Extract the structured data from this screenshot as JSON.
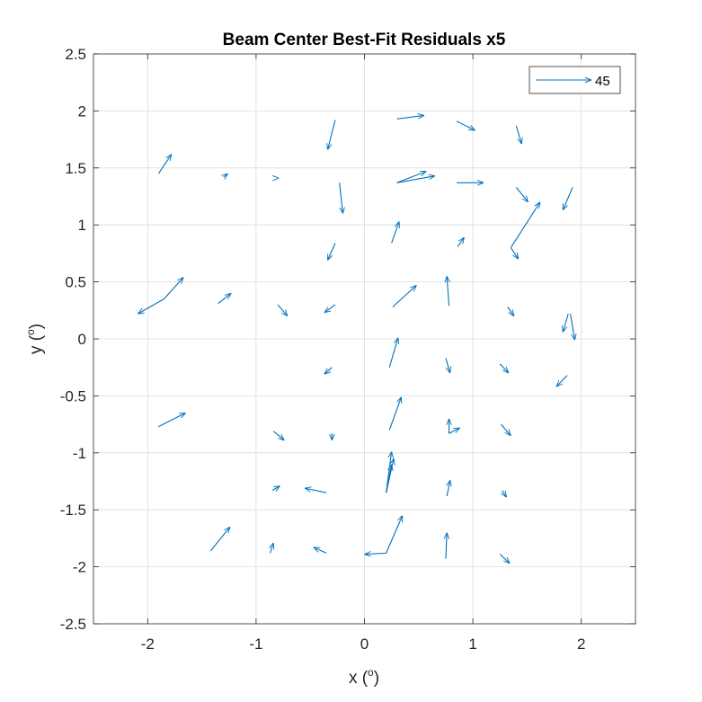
{
  "chart_data": {
    "type": "quiver",
    "title": "Beam Center Best-Fit Residuals x5",
    "xlabel": "x (",
    "xlabel_sup": "o",
    "xlabel_close": ")",
    "ylabel": "y (",
    "ylabel_sup": "o",
    "ylabel_close": ")",
    "xlim": [
      -2.5,
      2.5
    ],
    "ylim": [
      -2.5,
      2.5
    ],
    "xticks": [
      -2,
      -1,
      0,
      1,
      2
    ],
    "xtick_labels": [
      "-2",
      "-1",
      "0",
      "1",
      "2"
    ],
    "yticks": [
      -2.5,
      -2,
      -1.5,
      -1,
      -0.5,
      0,
      0.5,
      1,
      1.5,
      2,
      2.5
    ],
    "ytick_labels": [
      "-2.5",
      "-2",
      "-1.5",
      "-1",
      "-0.5",
      "0",
      "0.5",
      "1",
      "1.5",
      "2",
      "2.5"
    ],
    "grid": true,
    "legend": {
      "label": "45",
      "placement": "top-right",
      "reference_vector": [
        0.5,
        0
      ]
    },
    "arrow_color": "#0072BD",
    "arrows": [
      [
        -1.9,
        1.45,
        0.12,
        0.17
      ],
      [
        -1.3,
        1.42,
        0.04,
        0.03
      ],
      [
        -0.8,
        1.41,
        0.01,
        0.0
      ],
      [
        -0.27,
        1.92,
        -0.07,
        -0.26
      ],
      [
        0.3,
        1.93,
        0.25,
        0.03
      ],
      [
        0.85,
        1.91,
        0.17,
        -0.08
      ],
      [
        1.4,
        1.87,
        0.05,
        -0.16
      ],
      [
        0.3,
        1.37,
        0.27,
        0.1
      ],
      [
        0.3,
        1.37,
        0.35,
        0.06
      ],
      [
        0.85,
        1.37,
        0.25,
        0.0
      ],
      [
        1.4,
        1.33,
        0.11,
        -0.13
      ],
      [
        1.92,
        1.33,
        -0.09,
        -0.2
      ],
      [
        -0.23,
        1.37,
        0.03,
        -0.27
      ],
      [
        -0.27,
        0.84,
        -0.07,
        -0.15
      ],
      [
        0.25,
        0.84,
        0.07,
        0.19
      ],
      [
        0.86,
        0.81,
        0.06,
        0.08
      ],
      [
        1.35,
        0.8,
        0.27,
        0.4
      ],
      [
        1.35,
        0.8,
        0.07,
        -0.1
      ],
      [
        -1.85,
        0.35,
        0.18,
        0.19
      ],
      [
        -1.85,
        0.35,
        -0.24,
        -0.13
      ],
      [
        -1.35,
        0.31,
        0.12,
        0.09
      ],
      [
        -0.8,
        0.3,
        0.09,
        -0.1
      ],
      [
        -0.27,
        0.3,
        -0.1,
        -0.07
      ],
      [
        0.26,
        0.28,
        0.22,
        0.19
      ],
      [
        0.78,
        0.29,
        -0.02,
        0.26
      ],
      [
        1.32,
        0.28,
        0.06,
        -0.08
      ],
      [
        1.88,
        0.22,
        -0.05,
        -0.16
      ],
      [
        1.9,
        0.22,
        0.04,
        -0.23
      ],
      [
        0.23,
        -0.25,
        0.08,
        0.26
      ],
      [
        -0.3,
        -0.25,
        -0.07,
        -0.06
      ],
      [
        0.75,
        -0.17,
        0.04,
        -0.13
      ],
      [
        1.25,
        -0.22,
        0.08,
        -0.08
      ],
      [
        1.87,
        -0.32,
        -0.1,
        -0.1
      ],
      [
        -1.9,
        -0.77,
        0.25,
        0.12
      ],
      [
        -0.84,
        -0.81,
        0.1,
        -0.08
      ],
      [
        -0.3,
        -0.83,
        0.0,
        -0.06
      ],
      [
        0.23,
        -0.8,
        0.11,
        0.29
      ],
      [
        0.78,
        -0.83,
        0.0,
        0.13
      ],
      [
        0.78,
        -0.83,
        0.1,
        0.05
      ],
      [
        1.26,
        -0.75,
        0.09,
        -0.1
      ],
      [
        0.2,
        -1.35,
        0.05,
        0.36
      ],
      [
        0.2,
        -1.35,
        0.07,
        0.3
      ],
      [
        0.2,
        -1.35,
        0.05,
        0.25
      ],
      [
        -0.85,
        -1.33,
        0.07,
        0.04
      ],
      [
        -0.35,
        -1.35,
        -0.2,
        0.04
      ],
      [
        0.76,
        -1.38,
        0.03,
        0.14
      ],
      [
        1.27,
        -1.33,
        0.04,
        -0.06
      ],
      [
        -1.42,
        -1.86,
        0.18,
        0.21
      ],
      [
        -0.87,
        -1.88,
        0.03,
        0.09
      ],
      [
        -0.35,
        -1.88,
        -0.12,
        0.05
      ],
      [
        0.2,
        -1.88,
        -0.2,
        -0.01
      ],
      [
        0.2,
        -1.88,
        0.15,
        0.33
      ],
      [
        0.75,
        -1.93,
        0.01,
        0.23
      ],
      [
        1.25,
        -1.89,
        0.09,
        -0.08
      ]
    ]
  }
}
